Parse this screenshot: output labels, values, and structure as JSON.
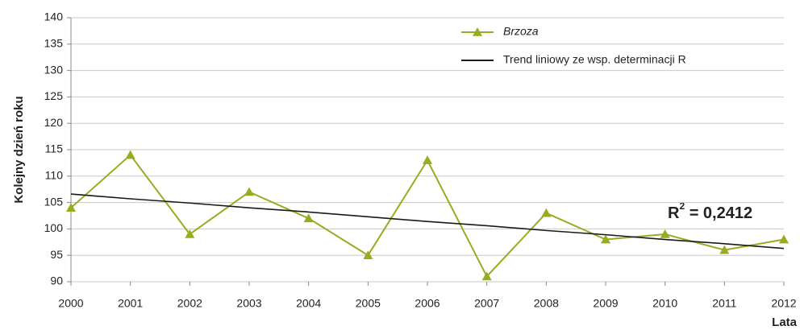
{
  "chart_data": {
    "type": "line",
    "x_label": "Lata",
    "y_label": "Kolejny dzień roku",
    "x": [
      2000,
      2001,
      2002,
      2003,
      2004,
      2005,
      2006,
      2007,
      2008,
      2009,
      2010,
      2011,
      2012
    ],
    "xlim": [
      2000,
      2012
    ],
    "xticks": [
      2000,
      2001,
      2002,
      2003,
      2004,
      2005,
      2006,
      2007,
      2008,
      2009,
      2010,
      2011,
      2012
    ],
    "ylim": [
      90,
      140
    ],
    "yticks": [
      90,
      95,
      100,
      105,
      110,
      115,
      120,
      125,
      130,
      135,
      140
    ],
    "grid": true,
    "series": [
      {
        "name": "Brzoza",
        "color": "#9aab1f",
        "marker": "triangle",
        "values": [
          104,
          114,
          99,
          107,
          102,
          95,
          113,
          91,
          103,
          98,
          99,
          96,
          98
        ]
      },
      {
        "name": "Trend liniowy ze wsp. determinacji R",
        "color": "#1a1a1a",
        "values": [
          106.6,
          105.7,
          104.9,
          104.0,
          103.2,
          102.3,
          101.4,
          100.6,
          99.7,
          98.9,
          98.0,
          97.2,
          96.3
        ]
      }
    ],
    "annotation": {
      "base": "R",
      "sup": "2",
      "text": " = 0,2412"
    }
  }
}
